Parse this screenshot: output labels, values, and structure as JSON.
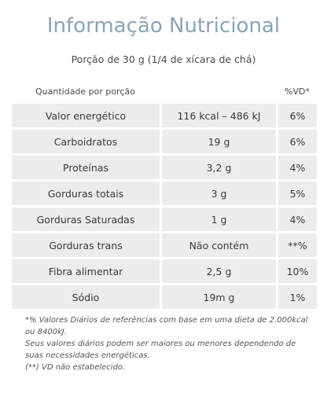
{
  "title": "Informação Nutricional",
  "subtitle": "Porção de 30 g (1/4 de xícara de chá)",
  "header": {
    "quantity_label": "Quantidade por porção",
    "vd_label": "%VD*"
  },
  "rows": [
    {
      "nutrient": "Valor energético",
      "amount": "116 kcal – 486 kJ",
      "vd": "6%"
    },
    {
      "nutrient": "Carboidratos",
      "amount": "19 g",
      "vd": "6%"
    },
    {
      "nutrient": "Proteínas",
      "amount": "3,2 g",
      "vd": "4%"
    },
    {
      "nutrient": "Gorduras totais",
      "amount": "3 g",
      "vd": "5%"
    },
    {
      "nutrient": "Gorduras Saturadas",
      "amount": "1 g",
      "vd": "4%"
    },
    {
      "nutrient": "Gorduras trans",
      "amount": "Não contém",
      "vd": "**%"
    },
    {
      "nutrient": "Fibra alimentar",
      "amount": "2,5 g",
      "vd": "10%"
    },
    {
      "nutrient": "Sódio",
      "amount": "19m g",
      "vd": "1%"
    }
  ],
  "footnotes": [
    "*% Valores Diários de referências com base em uma dieta de 2.000kcal ou 8400kJ.",
    "Seus valores diários podem ser maiores ou menores dependendo de suas necessidades energéticas.",
    "(**) VD não estabelecido."
  ]
}
